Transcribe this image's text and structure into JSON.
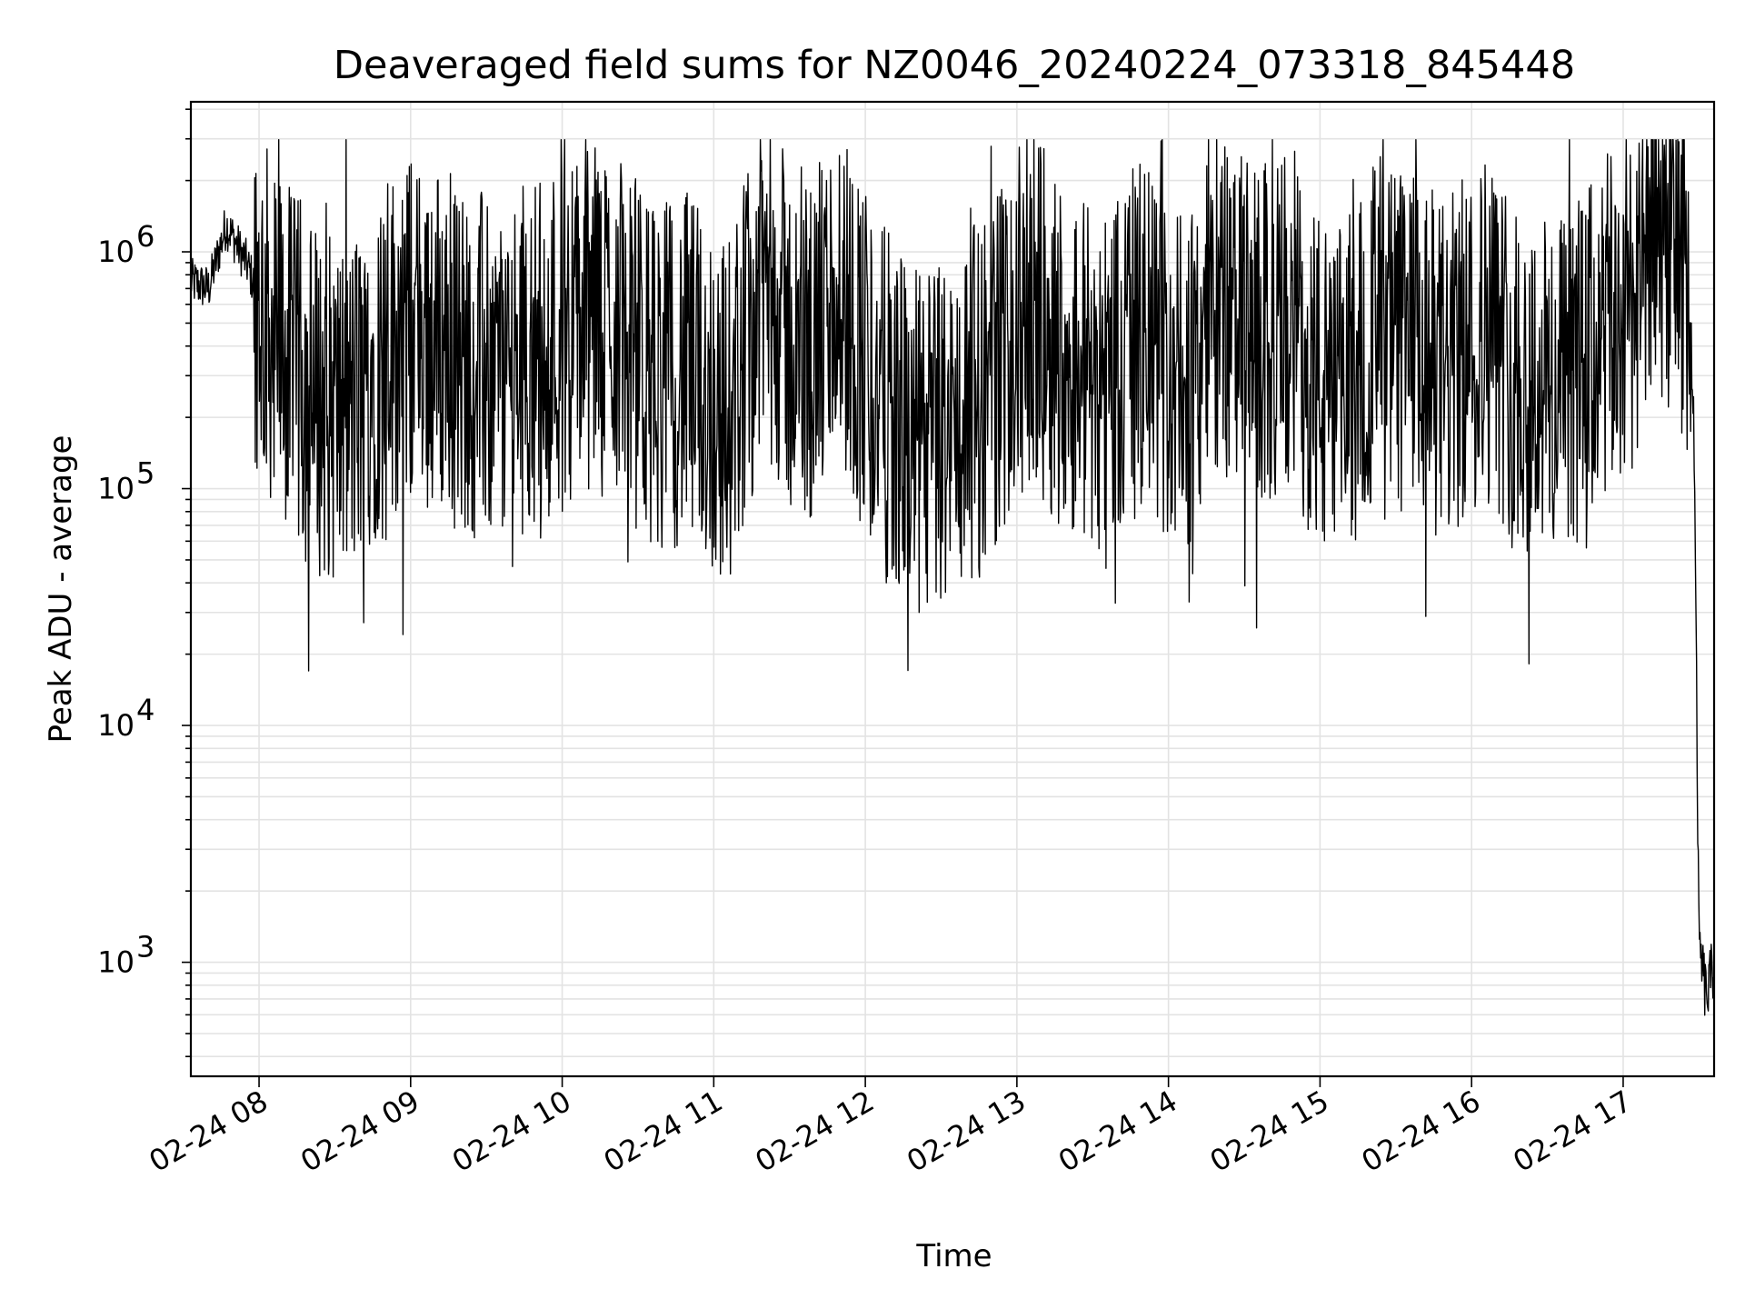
{
  "chart_data": {
    "type": "line",
    "title": "Deaveraged field sums for NZ0046_20240224_073318_845448",
    "xlabel": "Time",
    "ylabel": "Peak ADU - average",
    "y_scale": "log",
    "ylim": [
      330,
      4300000
    ],
    "xlim": [
      "2024-02-24 07:33",
      "2024-02-24 17:36"
    ],
    "grid": true,
    "legend": "none",
    "colors": {
      "line": "#000000",
      "grid": "#e3e3e3",
      "axes": "#000000"
    },
    "x_ticks": [
      "02-24 08",
      "02-24 09",
      "02-24 10",
      "02-24 11",
      "02-24 12",
      "02-24 13",
      "02-24 14",
      "02-24 15",
      "02-24 16",
      "02-24 17"
    ],
    "y_ticks": [
      {
        "base": "10",
        "exp": "3",
        "value": 1000
      },
      {
        "base": "10",
        "exp": "4",
        "value": 10000
      },
      {
        "base": "10",
        "exp": "5",
        "value": 100000
      },
      {
        "base": "10",
        "exp": "6",
        "value": 1000000
      }
    ],
    "series": [
      {
        "color": "#000000",
        "x": [
          "2024-02-24 07:33",
          "2024-02-24 07:40",
          "2024-02-24 07:47",
          "2024-02-24 07:55",
          "2024-02-24 08:05",
          "2024-02-24 08:20",
          "2024-02-24 08:35",
          "2024-02-24 08:50",
          "2024-02-24 09:05",
          "2024-02-24 09:20",
          "2024-02-24 09:35",
          "2024-02-24 09:50",
          "2024-02-24 10:05",
          "2024-02-24 10:20",
          "2024-02-24 10:35",
          "2024-02-24 10:50",
          "2024-02-24 11:05",
          "2024-02-24 11:20",
          "2024-02-24 11:35",
          "2024-02-24 11:50",
          "2024-02-24 12:05",
          "2024-02-24 12:20",
          "2024-02-24 12:35",
          "2024-02-24 12:50",
          "2024-02-24 13:05",
          "2024-02-24 13:20",
          "2024-02-24 13:35",
          "2024-02-24 13:50",
          "2024-02-24 14:05",
          "2024-02-24 14:20",
          "2024-02-24 14:35",
          "2024-02-24 14:50",
          "2024-02-24 15:05",
          "2024-02-24 15:20",
          "2024-02-24 15:35",
          "2024-02-24 15:50",
          "2024-02-24 16:05",
          "2024-02-24 16:20",
          "2024-02-24 16:35",
          "2024-02-24 16:50",
          "2024-02-24 17:05",
          "2024-02-24 17:15",
          "2024-02-24 17:25",
          "2024-02-24 17:28",
          "2024-02-24 17:30",
          "2024-02-24 17:33",
          "2024-02-24 17:36"
        ],
        "y": [
          750000,
          700000,
          1300000,
          900000,
          450000,
          250000,
          200000,
          400000,
          500000,
          350000,
          300000,
          400000,
          500000,
          550000,
          300000,
          320000,
          200000,
          800000,
          300000,
          700000,
          250000,
          150000,
          180000,
          300000,
          600000,
          350000,
          300000,
          450000,
          250000,
          600000,
          400000,
          500000,
          200000,
          450000,
          400000,
          300000,
          500000,
          300000,
          250000,
          400000,
          700000,
          1300000,
          900000,
          200000,
          1200,
          700,
          1000
        ]
      }
    ]
  }
}
